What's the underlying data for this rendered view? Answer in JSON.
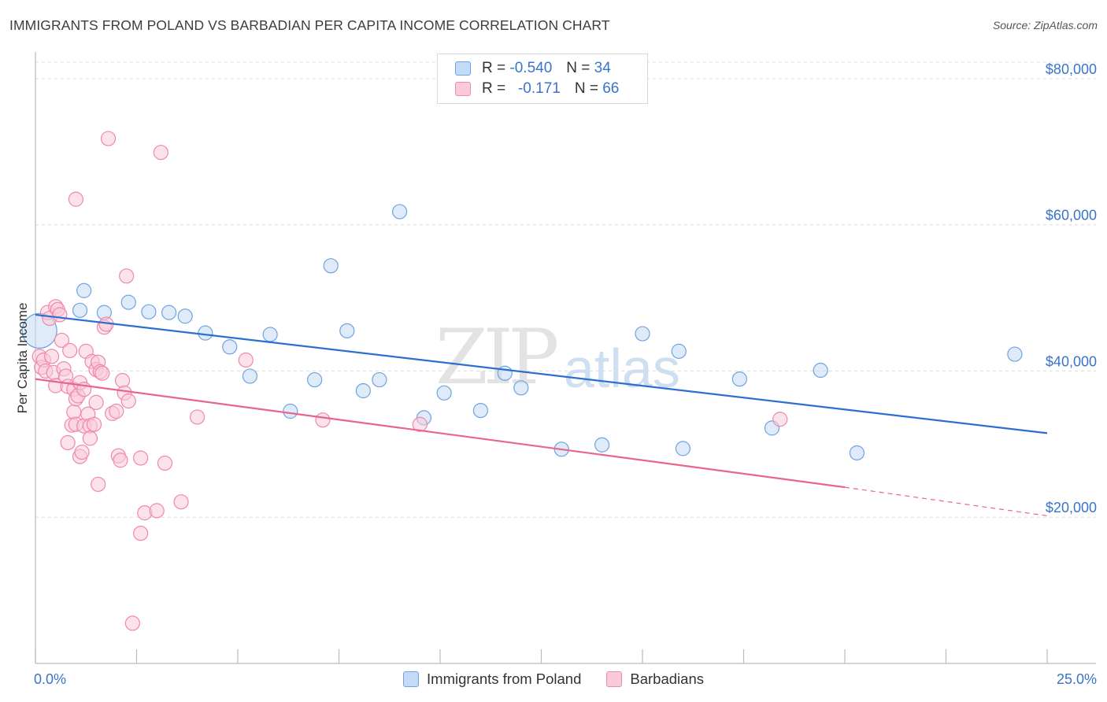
{
  "title": "IMMIGRANTS FROM POLAND VS BARBADIAN PER CAPITA INCOME CORRELATION CHART",
  "source": "Source: ZipAtlas.com",
  "watermark": {
    "zip": "ZIP",
    "atlas": "atlas"
  },
  "legend": {
    "rows": [
      {
        "r_label": "R =",
        "r_value": "-0.540",
        "n_label": "N =",
        "n_value": "34",
        "color": "#6fa3e0",
        "fill": "#c5daf4"
      },
      {
        "r_label": "R =",
        "r_value": "-0.171",
        "n_label": "N =",
        "n_value": "66",
        "color": "#ef89a8",
        "fill": "#f9cbd8"
      }
    ]
  },
  "bottom_legend": [
    "Immigrants from Poland",
    "Barbadians"
  ],
  "chart_data": {
    "type": "scatter",
    "title": "IMMIGRANTS FROM POLAND VS BARBADIAN PER CAPITA INCOME CORRELATION CHART",
    "xlabel": "",
    "ylabel": "Per Capita Income",
    "xlim": [
      0,
      25
    ],
    "ylim": [
      0,
      83000
    ],
    "x_tick_labels": [
      "0.0%",
      "25.0%"
    ],
    "y_ticks": [
      20000,
      40000,
      60000,
      80000
    ],
    "y_tick_labels": [
      "$20,000",
      "$40,000",
      "$60,000",
      "$80,000"
    ],
    "grid": true,
    "legend_placement": "top-center",
    "series": [
      {
        "name": "Immigrants from Poland",
        "color": "#6fa3e0",
        "fill": "#c5daf4",
        "trend_color": "#2b6fd0",
        "trend": {
          "x": [
            0,
            25
          ],
          "y": [
            47700,
            31500
          ]
        },
        "points": [
          [
            0.1,
            45500
          ],
          [
            1.2,
            51000
          ],
          [
            1.1,
            48300
          ],
          [
            1.7,
            48000
          ],
          [
            2.3,
            49400
          ],
          [
            2.8,
            48100
          ],
          [
            3.3,
            48000
          ],
          [
            3.7,
            47500
          ],
          [
            4.2,
            45200
          ],
          [
            4.8,
            43300
          ],
          [
            5.3,
            39300
          ],
          [
            5.8,
            45000
          ],
          [
            6.3,
            34500
          ],
          [
            6.9,
            38800
          ],
          [
            7.3,
            54400
          ],
          [
            7.7,
            45500
          ],
          [
            8.1,
            37300
          ],
          [
            8.5,
            38800
          ],
          [
            9.0,
            61800
          ],
          [
            9.6,
            33600
          ],
          [
            10.1,
            37000
          ],
          [
            11.0,
            34600
          ],
          [
            11.6,
            39700
          ],
          [
            12.0,
            37700
          ],
          [
            13.0,
            29300
          ],
          [
            14.0,
            29900
          ],
          [
            15.0,
            45100
          ],
          [
            15.9,
            42700
          ],
          [
            16.0,
            29400
          ],
          [
            17.4,
            38900
          ],
          [
            18.2,
            32200
          ],
          [
            19.4,
            40100
          ],
          [
            20.3,
            28800
          ],
          [
            24.2,
            42300
          ]
        ]
      },
      {
        "name": "Barbadians",
        "color": "#ef89a8",
        "fill": "#f9cbd8",
        "trend_color": "#e8658f",
        "trend": {
          "x": [
            0,
            20
          ],
          "y": [
            38900,
            24100
          ]
        },
        "trend_dashed": {
          "x": [
            20,
            25
          ],
          "y": [
            24100,
            20200
          ]
        },
        "points": [
          [
            0.1,
            42000
          ],
          [
            0.15,
            40500
          ],
          [
            0.2,
            41500
          ],
          [
            0.25,
            40000
          ],
          [
            0.3,
            48000
          ],
          [
            0.35,
            47200
          ],
          [
            0.4,
            42000
          ],
          [
            0.45,
            39800
          ],
          [
            0.5,
            38000
          ],
          [
            0.5,
            48800
          ],
          [
            0.55,
            48400
          ],
          [
            0.6,
            47700
          ],
          [
            0.65,
            44200
          ],
          [
            0.7,
            40300
          ],
          [
            0.75,
            39300
          ],
          [
            0.8,
            37900
          ],
          [
            0.8,
            30200
          ],
          [
            0.85,
            42800
          ],
          [
            0.9,
            32600
          ],
          [
            0.95,
            34400
          ],
          [
            0.95,
            37500
          ],
          [
            1.0,
            36200
          ],
          [
            1.0,
            32700
          ],
          [
            1.05,
            36600
          ],
          [
            1.0,
            63500
          ],
          [
            1.1,
            38400
          ],
          [
            1.1,
            28300
          ],
          [
            1.15,
            28900
          ],
          [
            1.2,
            37500
          ],
          [
            1.2,
            32500
          ],
          [
            1.25,
            42700
          ],
          [
            1.3,
            34100
          ],
          [
            1.35,
            32500
          ],
          [
            1.35,
            30800
          ],
          [
            1.4,
            41300
          ],
          [
            1.45,
            32700
          ],
          [
            1.5,
            40200
          ],
          [
            1.5,
            35700
          ],
          [
            1.55,
            41200
          ],
          [
            1.55,
            24500
          ],
          [
            1.6,
            39900
          ],
          [
            1.65,
            39700
          ],
          [
            1.7,
            46000
          ],
          [
            1.75,
            46400
          ],
          [
            1.8,
            71800
          ],
          [
            1.9,
            34200
          ],
          [
            2.0,
            34500
          ],
          [
            2.05,
            28400
          ],
          [
            2.1,
            27800
          ],
          [
            2.15,
            38700
          ],
          [
            2.2,
            37000
          ],
          [
            2.25,
            53000
          ],
          [
            2.3,
            35900
          ],
          [
            2.6,
            28100
          ],
          [
            2.6,
            17800
          ],
          [
            2.7,
            20600
          ],
          [
            2.4,
            5500
          ],
          [
            3.0,
            20900
          ],
          [
            3.1,
            69900
          ],
          [
            3.2,
            27400
          ],
          [
            3.6,
            22100
          ],
          [
            4.0,
            33700
          ],
          [
            5.2,
            41500
          ],
          [
            7.1,
            33300
          ],
          [
            9.5,
            32700
          ],
          [
            18.4,
            33400
          ]
        ]
      }
    ]
  }
}
